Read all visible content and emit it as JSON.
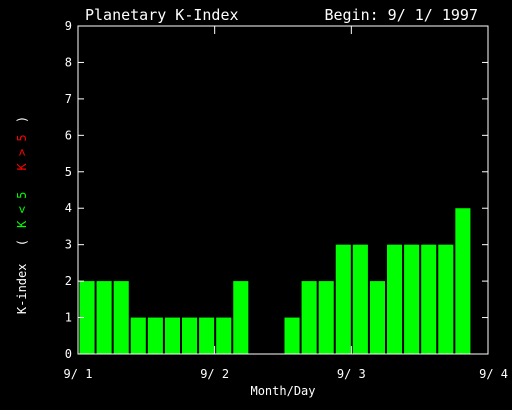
{
  "chart_data": {
    "type": "bar",
    "title": "Planetary K-Index",
    "subtitle": "Begin: 9/ 1/ 1997",
    "xlabel": "Month/Day",
    "ylabel": {
      "prefix": "K-index",
      "open": "(",
      "low": "K < 5",
      "high": "K > 5",
      "close": ")"
    },
    "ylim": [
      0,
      9
    ],
    "yticks": [
      "0",
      "1",
      "2",
      "3",
      "4",
      "5",
      "6",
      "7",
      "8",
      "9"
    ],
    "xticks": [
      "9/ 1",
      "9/ 2",
      "9/ 3",
      "9/ 4"
    ],
    "intervals_per_day": 8,
    "values": [
      2,
      2,
      2,
      1,
      1,
      1,
      1,
      1,
      1,
      2,
      0,
      0,
      1,
      2,
      2,
      3,
      3,
      2,
      3,
      3,
      3,
      3,
      4
    ],
    "colors": {
      "low": "#00ff00",
      "high": "#ff0000",
      "axis": "#ffffff",
      "background": "#000000"
    }
  }
}
